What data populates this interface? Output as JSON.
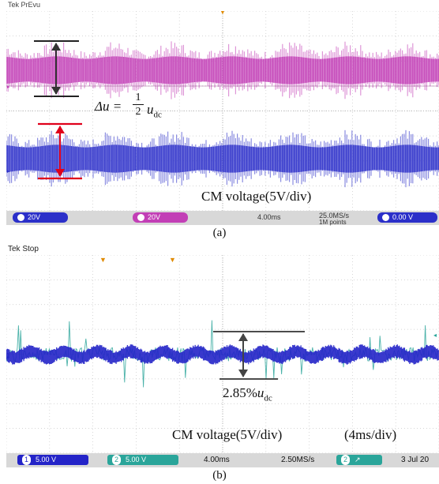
{
  "panel_a": {
    "scope_label": "Tek PrEvu",
    "annotation_delta": "Δu =",
    "fraction_num": "1",
    "fraction_den": "2",
    "annotation_u": "u",
    "annotation_dc": "dc",
    "cm_label": "CM voltage(5V/div)",
    "status": {
      "ch1": "20V",
      "ch2": "20V",
      "timebase": "4.00ms",
      "sample_rate": "25.0MS/s",
      "points": "1M points",
      "trigger": "0.00 V"
    },
    "caption": "(a)",
    "colors": {
      "ch_magenta": "#c23fb6",
      "ch_blue": "#2b2fc9"
    }
  },
  "panel_b": {
    "scope_label": "Tek Stop",
    "annotation_value": "2.85%",
    "annotation_u": "u",
    "annotation_dc": "dc",
    "cm_label": "CM voltage(5V/div)",
    "time_label": "(4ms/div)",
    "status": {
      "ch1_num": "1",
      "ch1": "5.00 V",
      "ch2_num": "2",
      "ch2": "5.00 V",
      "timebase": "4.00ms",
      "sample_rate": "2.50MS/s",
      "trig_num": "2",
      "date": "3 Jul 20"
    },
    "caption": "(b)",
    "colors": {
      "ch_cyan": "#2aa59a",
      "ch_blue": "#2424c8"
    }
  }
}
